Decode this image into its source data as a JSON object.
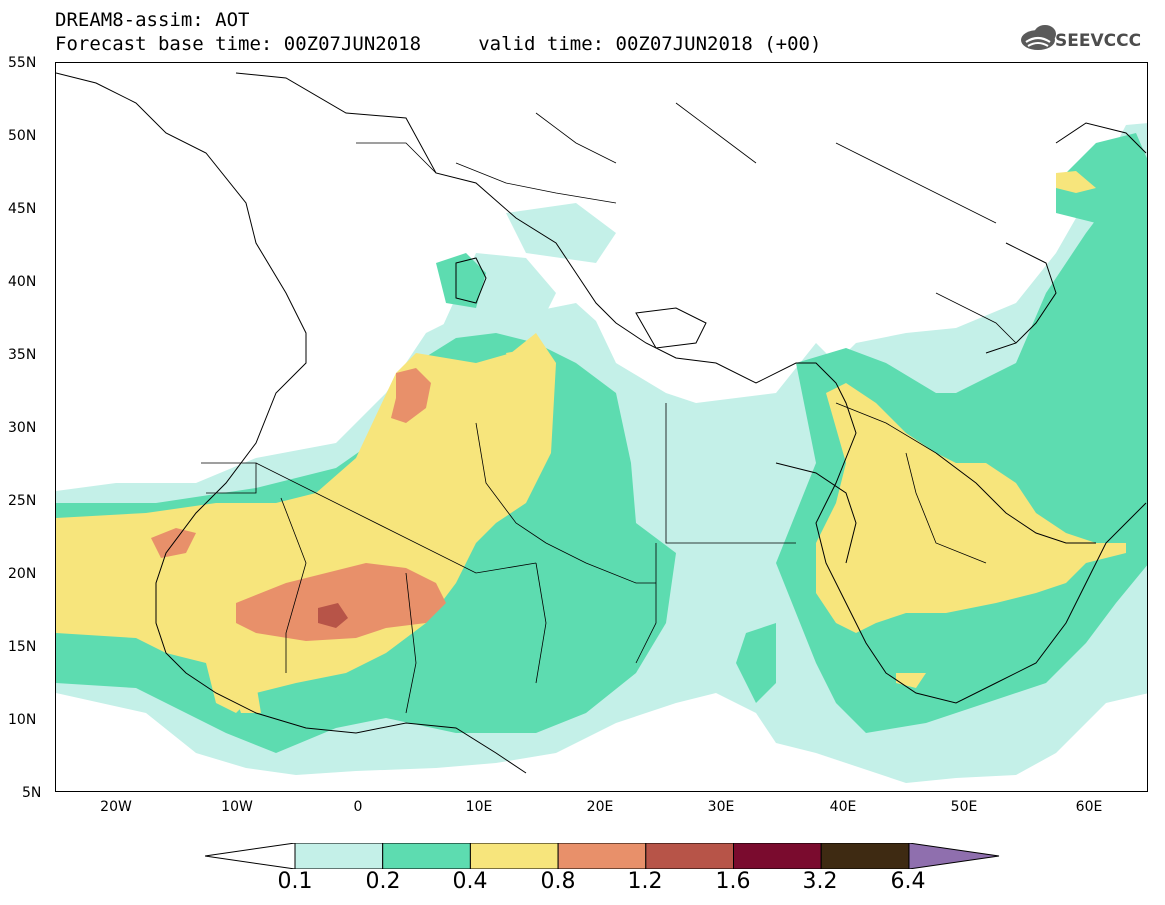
{
  "title": {
    "line1": "DREAM8-assim: AOT",
    "line2": "Forecast base time: 00Z07JUN2018     valid time: 00Z07JUN2018 (+00)"
  },
  "logo": {
    "text": "SEEVCCC",
    "icon": "cloud-icon"
  },
  "map": {
    "lon_range": [
      -25,
      65
    ],
    "lat_range": [
      5,
      55
    ],
    "lat_ticks": [
      "55N",
      "50N",
      "45N",
      "40N",
      "35N",
      "30N",
      "25N",
      "20N",
      "15N",
      "10N",
      "5N"
    ],
    "lon_ticks": [
      "20W",
      "10W",
      "0",
      "10E",
      "20E",
      "30E",
      "40E",
      "50E",
      "60E"
    ],
    "background": "#ffffff",
    "borders_color": "#000000"
  },
  "colorbar": {
    "labels": [
      "0.1",
      "0.2",
      "0.4",
      "0.8",
      "1.2",
      "1.6",
      "3.2",
      "6.4"
    ],
    "colors": [
      "#c4f0e8",
      "#5ddcb0",
      "#f7e57c",
      "#e8906a",
      "#b75448",
      "#7a0b2e",
      "#3e2a12",
      "#8f6fae"
    ],
    "under_color": "#ffffff"
  }
}
